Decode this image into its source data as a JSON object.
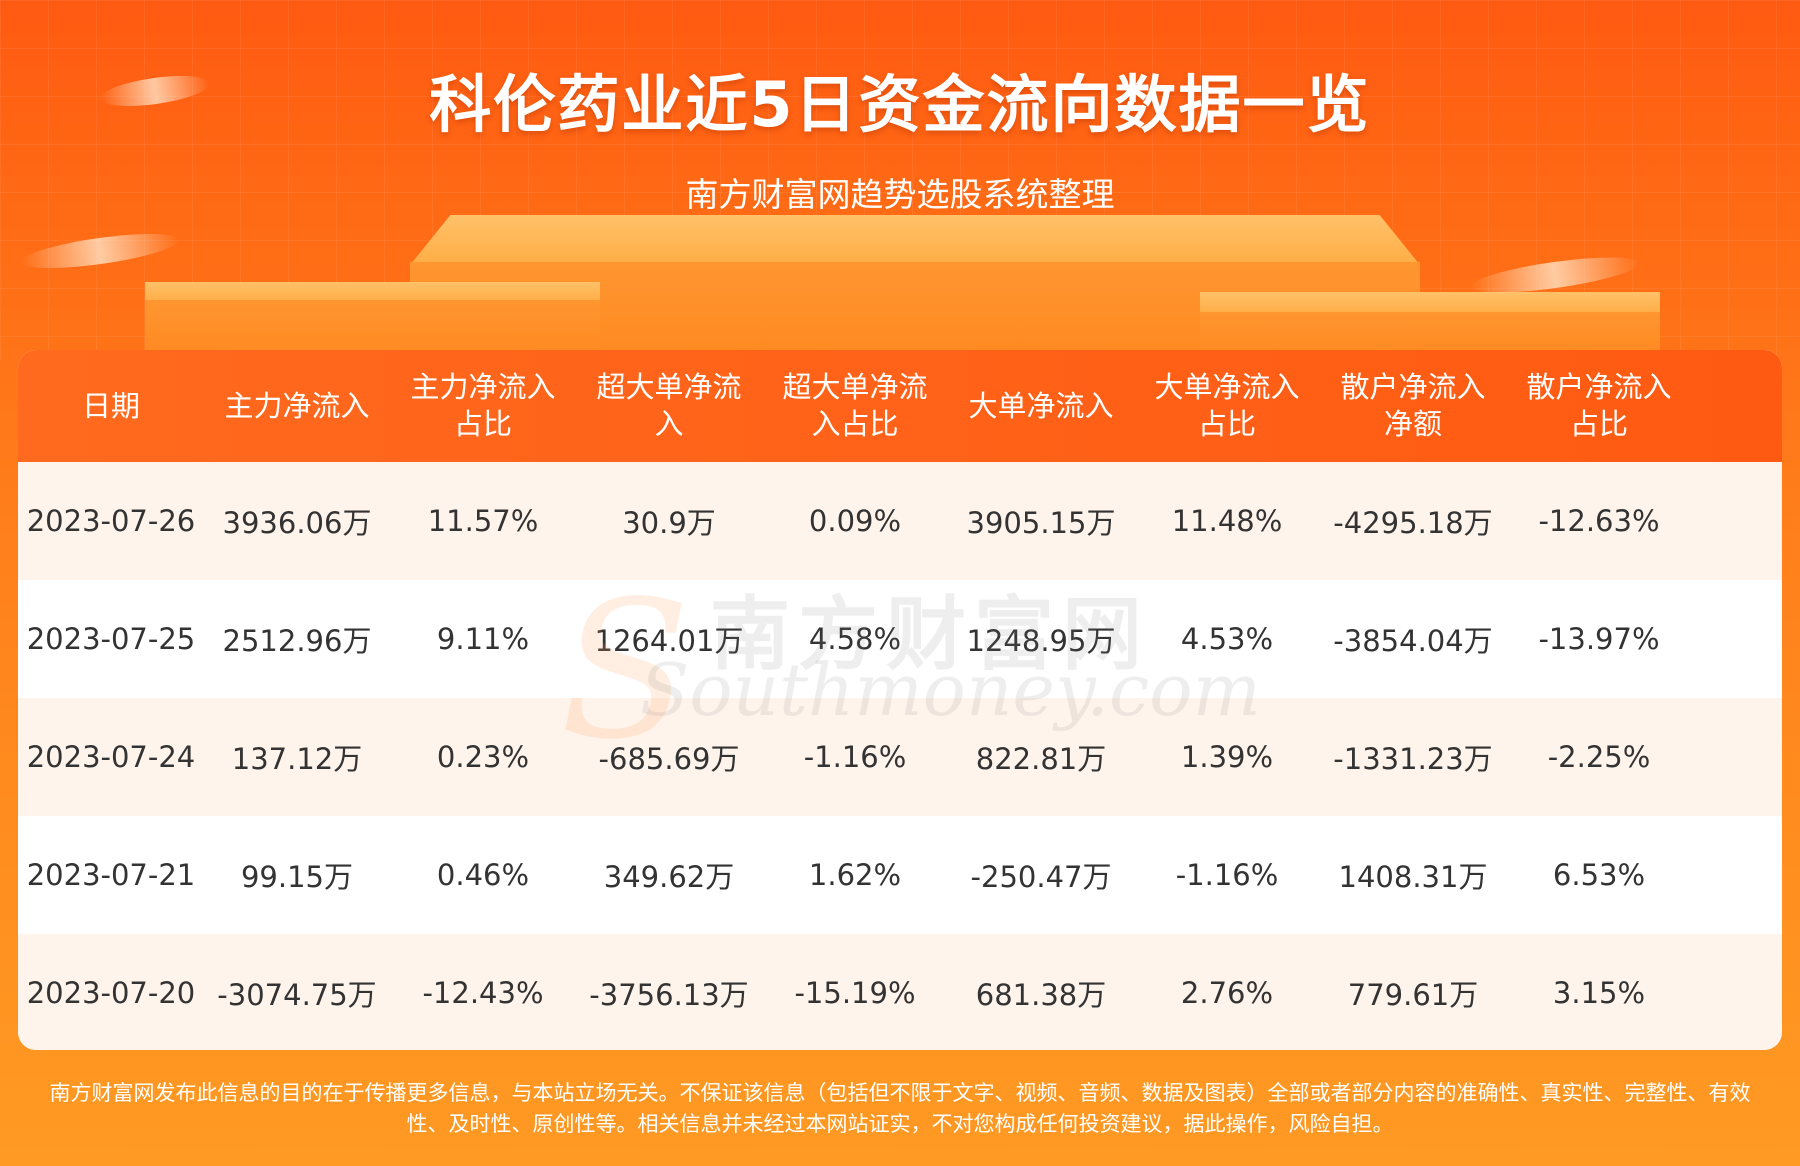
{
  "page": {
    "title": "科伦药业近5日资金流向数据一览",
    "subtitle": "南方财富网趋势选股系统整理"
  },
  "table": {
    "headers": [
      "日期",
      "主力净流入",
      "主力净流入\n占比",
      "超大单净流\n入",
      "超大单净流\n入占比",
      "大单净流入",
      "大单净流入\n占比",
      "散户净流入\n净额",
      "散户净流入\n占比"
    ],
    "rows": [
      [
        "2023-07-26",
        "3936.06万",
        "11.57%",
        "30.9万",
        "0.09%",
        "3905.15万",
        "11.48%",
        "-4295.18万",
        "-12.63%"
      ],
      [
        "2023-07-25",
        "2512.96万",
        "9.11%",
        "1264.01万",
        "4.58%",
        "1248.95万",
        "4.53%",
        "-3854.04万",
        "-13.97%"
      ],
      [
        "2023-07-24",
        "137.12万",
        "0.23%",
        "-685.69万",
        "-1.16%",
        "822.81万",
        "1.39%",
        "-1331.23万",
        "-2.25%"
      ],
      [
        "2023-07-21",
        "99.15万",
        "0.46%",
        "349.62万",
        "1.62%",
        "-250.47万",
        "-1.16%",
        "1408.31万",
        "6.53%"
      ],
      [
        "2023-07-20",
        "-3074.75万",
        "-12.43%",
        "-3756.13万",
        "-15.19%",
        "681.38万",
        "2.76%",
        "779.61万",
        "3.15%"
      ]
    ]
  },
  "watermark": {
    "cn": "南方财富网",
    "en": "Southmoney.com"
  },
  "footer": {
    "disclaimer_line1": "南方财富网发布此信息的目的在于传播更多信息，与本站立场无关。不保证该信息（包括但不限于文字、视频、音频、数据及图表）全部或者部分内容的准确性、真实性、完整性、有效",
    "disclaimer_line2": "性、及时性、原创性等。相关信息并未经过本网站证实，不对您构成任何投资建议，据此操作，风险自担。"
  },
  "colors": {
    "header_bg": "#ff5a12",
    "row_alt_bg": "#fff4ec",
    "text": "#333333",
    "background": "#ff7f1c"
  }
}
